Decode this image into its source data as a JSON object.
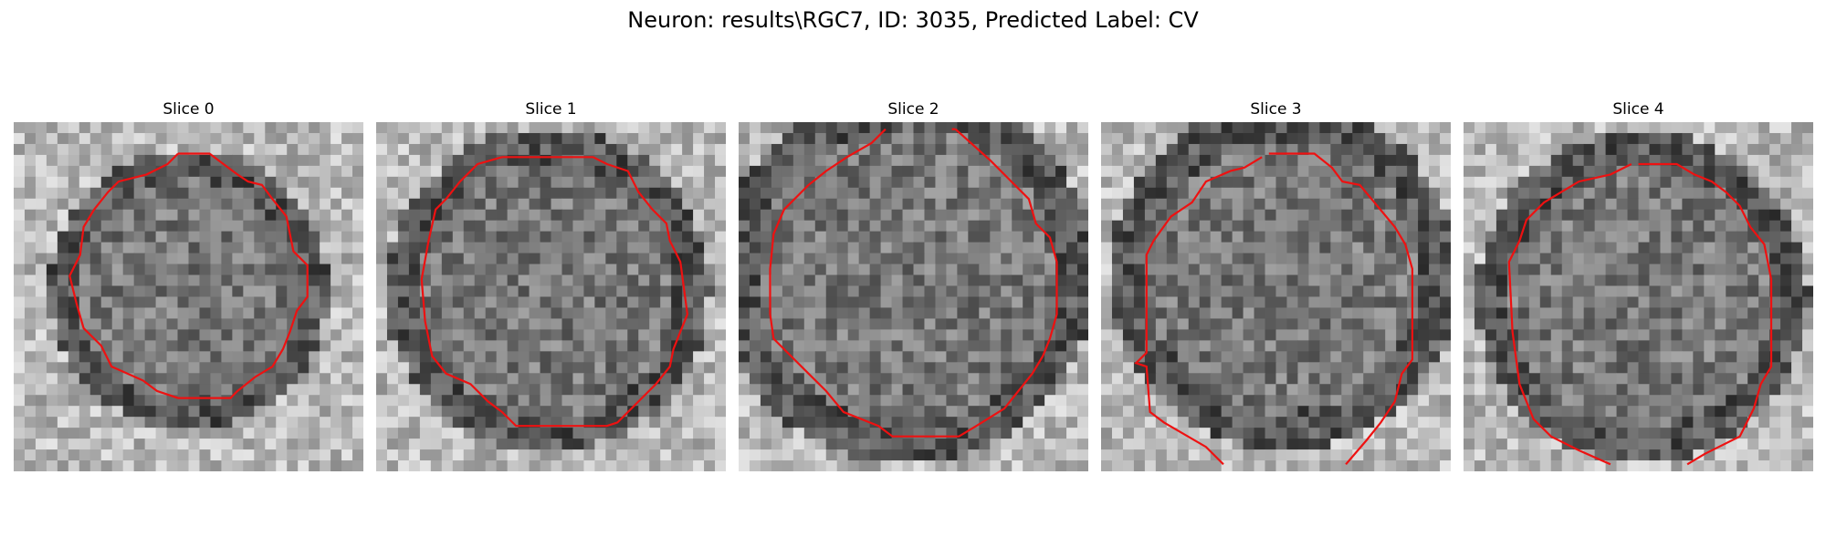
{
  "figure": {
    "title": "Neuron: results\\RGC7, ID: 3035, Predicted Label: CV"
  },
  "slices": [
    {
      "title": "Slice 0",
      "seed": 11,
      "dark_center": [
        0.5,
        0.48
      ],
      "dark_radius": 0.37,
      "contour": [
        [
          0.47,
          0.09
        ],
        [
          0.56,
          0.09
        ],
        [
          0.6,
          0.12
        ],
        [
          0.64,
          0.15
        ],
        [
          0.67,
          0.17
        ],
        [
          0.71,
          0.18
        ],
        [
          0.74,
          0.22
        ],
        [
          0.78,
          0.27
        ],
        [
          0.8,
          0.37
        ],
        [
          0.84,
          0.41
        ],
        [
          0.84,
          0.5
        ],
        [
          0.81,
          0.54
        ],
        [
          0.79,
          0.6
        ],
        [
          0.77,
          0.65
        ],
        [
          0.74,
          0.7
        ],
        [
          0.69,
          0.73
        ],
        [
          0.64,
          0.77
        ],
        [
          0.62,
          0.79
        ],
        [
          0.47,
          0.79
        ],
        [
          0.41,
          0.77
        ],
        [
          0.37,
          0.74
        ],
        [
          0.28,
          0.7
        ],
        [
          0.25,
          0.64
        ],
        [
          0.2,
          0.59
        ],
        [
          0.18,
          0.52
        ],
        [
          0.16,
          0.44
        ],
        [
          0.19,
          0.38
        ],
        [
          0.2,
          0.3
        ],
        [
          0.23,
          0.25
        ],
        [
          0.27,
          0.2
        ],
        [
          0.3,
          0.17
        ],
        [
          0.38,
          0.15
        ],
        [
          0.44,
          0.12
        ]
      ]
    },
    {
      "title": "Slice 1",
      "seed": 23,
      "dark_center": [
        0.49,
        0.48
      ],
      "dark_radius": 0.43,
      "contour": [
        [
          0.36,
          0.1
        ],
        [
          0.62,
          0.1
        ],
        [
          0.66,
          0.12
        ],
        [
          0.72,
          0.14
        ],
        [
          0.75,
          0.2
        ],
        [
          0.79,
          0.25
        ],
        [
          0.83,
          0.29
        ],
        [
          0.84,
          0.34
        ],
        [
          0.87,
          0.4
        ],
        [
          0.89,
          0.55
        ],
        [
          0.87,
          0.6
        ],
        [
          0.85,
          0.65
        ],
        [
          0.84,
          0.7
        ],
        [
          0.8,
          0.75
        ],
        [
          0.75,
          0.8
        ],
        [
          0.69,
          0.86
        ],
        [
          0.66,
          0.87
        ],
        [
          0.4,
          0.87
        ],
        [
          0.36,
          0.83
        ],
        [
          0.32,
          0.8
        ],
        [
          0.27,
          0.75
        ],
        [
          0.2,
          0.72
        ],
        [
          0.16,
          0.67
        ],
        [
          0.14,
          0.57
        ],
        [
          0.13,
          0.45
        ],
        [
          0.15,
          0.34
        ],
        [
          0.17,
          0.25
        ],
        [
          0.2,
          0.22
        ],
        [
          0.24,
          0.17
        ],
        [
          0.29,
          0.12
        ]
      ]
    },
    {
      "title": "Slice 2",
      "seed": 37,
      "dark_center": [
        0.48,
        0.44
      ],
      "dark_radius": 0.5,
      "contour": [
        [
          0.62,
          0.02
        ],
        [
          0.72,
          0.11
        ],
        [
          0.78,
          0.17
        ],
        [
          0.83,
          0.22
        ],
        [
          0.85,
          0.29
        ],
        [
          0.89,
          0.33
        ],
        [
          0.91,
          0.4
        ],
        [
          0.91,
          0.55
        ],
        [
          0.89,
          0.62
        ],
        [
          0.87,
          0.67
        ],
        [
          0.84,
          0.72
        ],
        [
          0.8,
          0.77
        ],
        [
          0.76,
          0.82
        ],
        [
          0.68,
          0.87
        ],
        [
          0.63,
          0.9
        ],
        [
          0.44,
          0.9
        ],
        [
          0.4,
          0.87
        ],
        [
          0.3,
          0.83
        ],
        [
          0.25,
          0.77
        ],
        [
          0.2,
          0.72
        ],
        [
          0.15,
          0.67
        ],
        [
          0.1,
          0.62
        ],
        [
          0.09,
          0.55
        ],
        [
          0.09,
          0.42
        ],
        [
          0.1,
          0.32
        ],
        [
          0.13,
          0.25
        ],
        [
          0.2,
          0.18
        ],
        [
          0.25,
          0.14
        ],
        [
          0.31,
          0.1
        ],
        [
          0.38,
          0.06
        ],
        [
          0.42,
          0.02
        ]
      ]
    },
    {
      "title": "Slice 3",
      "seed": 53,
      "dark_center": [
        0.52,
        0.44
      ],
      "dark_radius": 0.46,
      "contour": [
        [
          0.48,
          0.09
        ],
        [
          0.61,
          0.09
        ],
        [
          0.66,
          0.13
        ],
        [
          0.69,
          0.17
        ],
        [
          0.74,
          0.18
        ],
        [
          0.79,
          0.24
        ],
        [
          0.84,
          0.3
        ],
        [
          0.87,
          0.35
        ],
        [
          0.89,
          0.42
        ],
        [
          0.89,
          0.68
        ],
        [
          0.86,
          0.72
        ],
        [
          0.84,
          0.8
        ],
        [
          0.8,
          0.86
        ],
        [
          0.76,
          0.91
        ],
        [
          0.7,
          0.98
        ]
      ]
    },
    {
      "title": "Slice 4",
      "seed": 71,
      "dark_center": [
        0.51,
        0.5
      ],
      "dark_radius": 0.44,
      "contour": [
        [
          0.5,
          0.12
        ],
        [
          0.61,
          0.12
        ],
        [
          0.66,
          0.15
        ],
        [
          0.71,
          0.17
        ],
        [
          0.75,
          0.2
        ],
        [
          0.79,
          0.24
        ],
        [
          0.82,
          0.3
        ],
        [
          0.86,
          0.35
        ],
        [
          0.88,
          0.45
        ],
        [
          0.88,
          0.7
        ],
        [
          0.85,
          0.75
        ],
        [
          0.83,
          0.82
        ],
        [
          0.79,
          0.9
        ],
        [
          0.73,
          0.93
        ],
        [
          0.69,
          0.95
        ],
        [
          0.64,
          0.98
        ]
      ]
    }
  ],
  "contour_extra": [
    {
      "slice": 3,
      "points": [
        [
          0.35,
          0.98
        ],
        [
          0.3,
          0.93
        ],
        [
          0.18,
          0.86
        ],
        [
          0.14,
          0.83
        ],
        [
          0.13,
          0.7
        ],
        [
          0.1,
          0.69
        ],
        [
          0.13,
          0.66
        ],
        [
          0.13,
          0.38
        ],
        [
          0.15,
          0.34
        ],
        [
          0.2,
          0.27
        ],
        [
          0.26,
          0.23
        ],
        [
          0.3,
          0.17
        ],
        [
          0.37,
          0.14
        ],
        [
          0.41,
          0.13
        ],
        [
          0.46,
          0.1
        ]
      ]
    },
    {
      "slice": 4,
      "points": [
        [
          0.42,
          0.98
        ],
        [
          0.33,
          0.94
        ],
        [
          0.25,
          0.9
        ],
        [
          0.2,
          0.85
        ],
        [
          0.16,
          0.75
        ],
        [
          0.14,
          0.6
        ],
        [
          0.13,
          0.4
        ],
        [
          0.16,
          0.34
        ],
        [
          0.18,
          0.28
        ],
        [
          0.23,
          0.23
        ],
        [
          0.28,
          0.2
        ],
        [
          0.33,
          0.17
        ],
        [
          0.42,
          0.15
        ],
        [
          0.48,
          0.12
        ]
      ]
    },
    {
      "slice": 2,
      "points": [
        [
          0.61,
          0.02
        ],
        [
          0.62,
          0.02
        ]
      ]
    }
  ],
  "colors": {
    "contour": "#ee1111"
  }
}
